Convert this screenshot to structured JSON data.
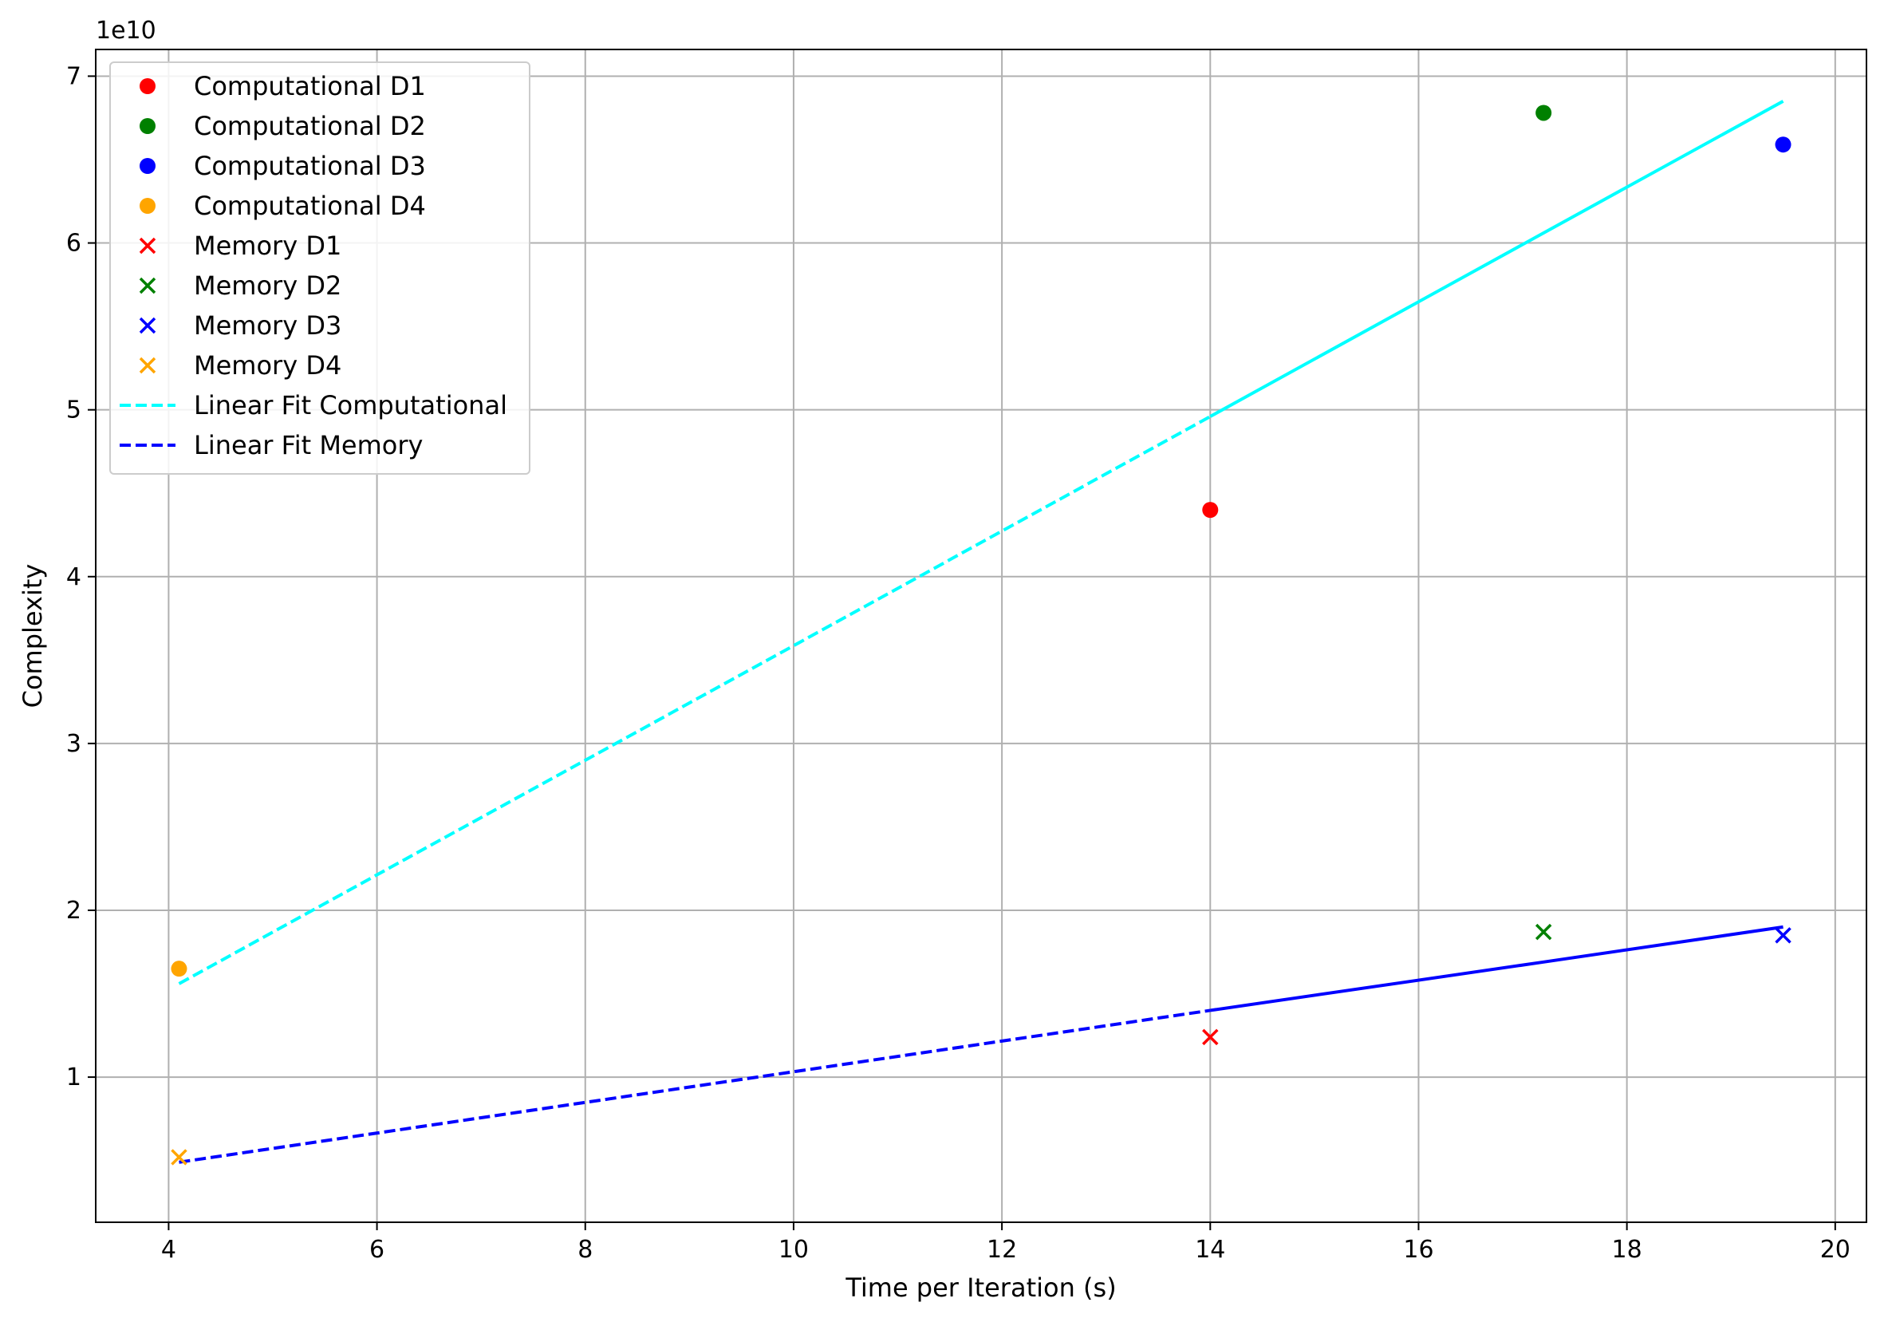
{
  "chart_data": {
    "type": "scatter",
    "xlabel": "Time per Iteration (s)",
    "ylabel": "Complexity",
    "y_offset_label": "1e10",
    "xlim": [
      3.3,
      20.3
    ],
    "ylim": [
      1300000000.0,
      71600000000.0
    ],
    "xticks": [
      4,
      6,
      8,
      10,
      12,
      14,
      16,
      18,
      20
    ],
    "yticks": [
      10000000000.0,
      20000000000.0,
      30000000000.0,
      40000000000.0,
      50000000000.0,
      60000000000.0,
      70000000000.0
    ],
    "xtick_labels": [
      "4",
      "6",
      "8",
      "10",
      "12",
      "14",
      "16",
      "18",
      "20"
    ],
    "ytick_labels": [
      "1",
      "2",
      "3",
      "4",
      "5",
      "6",
      "7"
    ],
    "grid": true,
    "legend_position": "upper-left",
    "series": [
      {
        "name": "Computational D1",
        "marker": "circle",
        "color": "#ff0000",
        "x": [
          14.0
        ],
        "y": [
          44000000000.0
        ]
      },
      {
        "name": "Computational D2",
        "marker": "circle",
        "color": "#008000",
        "x": [
          17.2
        ],
        "y": [
          67800000000.0
        ]
      },
      {
        "name": "Computational D3",
        "marker": "circle",
        "color": "#0000ff",
        "x": [
          19.5
        ],
        "y": [
          65900000000.0
        ]
      },
      {
        "name": "Computational D4",
        "marker": "circle",
        "color": "#ffa500",
        "x": [
          4.1
        ],
        "y": [
          16500000000.0
        ]
      },
      {
        "name": "Memory D1",
        "marker": "x",
        "color": "#ff0000",
        "x": [
          14.0
        ],
        "y": [
          12400000000.0
        ]
      },
      {
        "name": "Memory D2",
        "marker": "x",
        "color": "#008000",
        "x": [
          17.2
        ],
        "y": [
          18700000000.0
        ]
      },
      {
        "name": "Memory D3",
        "marker": "x",
        "color": "#0000ff",
        "x": [
          19.5
        ],
        "y": [
          18500000000.0
        ]
      },
      {
        "name": "Memory D4",
        "marker": "x",
        "color": "#ffa500",
        "x": [
          4.1
        ],
        "y": [
          5200000000.0
        ]
      }
    ],
    "fit_lines": [
      {
        "name": "Linear Fit Computational",
        "color": "#00ffff",
        "x": [
          4.1,
          14.0,
          17.2,
          19.5
        ],
        "y": [
          15600000000.0,
          49600000000.0,
          60600000000.0,
          68500000000.0
        ]
      },
      {
        "name": "Linear Fit Memory",
        "color": "#0000ff",
        "x": [
          4.1,
          14.0,
          17.2,
          19.5
        ],
        "y": [
          4900000000.0,
          14000000000.0,
          16900000000.0,
          19000000000.0
        ]
      }
    ]
  }
}
